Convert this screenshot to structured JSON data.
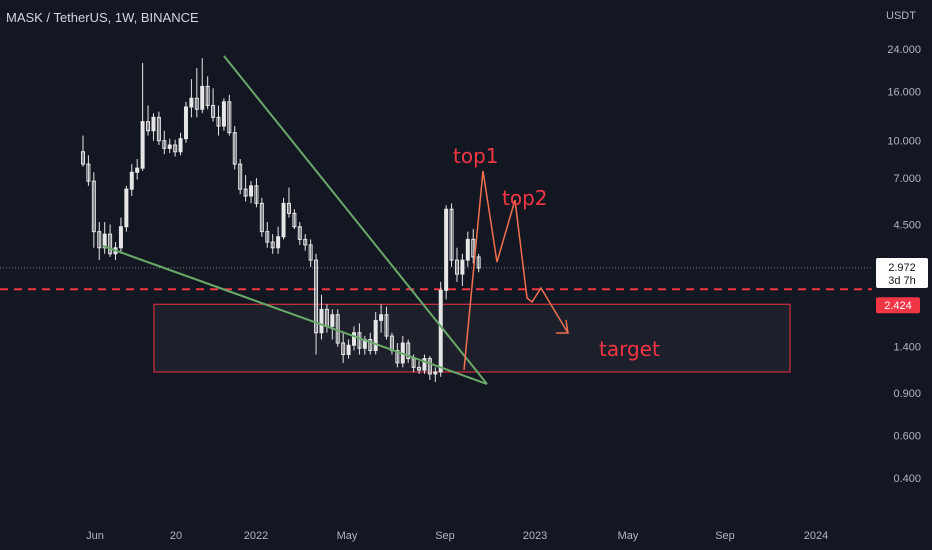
{
  "header": {
    "symbol_title": "MASK / TetherUS, 1W, BINANCE",
    "unit": "USDT"
  },
  "colors": {
    "background": "#131722",
    "axis_text": "#b2b5be",
    "candle_up": "#e6e6e6",
    "candle_down": "#e6e6e6",
    "trendline": "#6aa96a",
    "annotation": "#f23645",
    "arrow": "#f2704f",
    "dashed_level": "#f23645",
    "target_box": "#f23645"
  },
  "chart_data": {
    "type": "candlestick",
    "y_scale": "log",
    "ylim": [
      0.3,
      30
    ],
    "y_ticks": [
      "24.000",
      "16.000",
      "10.000",
      "7.000",
      "4.500",
      "1.400",
      "0.900",
      "0.600",
      "0.400"
    ],
    "y_tick_values": [
      24,
      16,
      10,
      7,
      4.5,
      1.4,
      0.9,
      0.6,
      0.4
    ],
    "x_ticks": [
      "Jun",
      "20",
      "2022",
      "May",
      "Sep",
      "2023",
      "May",
      "Sep",
      "2024"
    ],
    "current_price": {
      "value": "2.972",
      "countdown": "3d 7h"
    },
    "level_price": {
      "value": "2.424"
    },
    "target_zone": {
      "low": 1.1,
      "high": 2.1
    },
    "annotations": [
      "top1",
      "top2",
      "target"
    ],
    "candles": [
      [
        9.0,
        10.5,
        7.8,
        8.0
      ],
      [
        8.0,
        8.7,
        6.5,
        6.8
      ],
      [
        6.8,
        7.4,
        3.6,
        4.2
      ],
      [
        4.2,
        4.6,
        3.2,
        3.6
      ],
      [
        3.6,
        4.6,
        3.4,
        4.1
      ],
      [
        4.1,
        4.5,
        3.3,
        3.4
      ],
      [
        3.4,
        3.8,
        3.2,
        3.6
      ],
      [
        3.6,
        4.8,
        3.4,
        4.4
      ],
      [
        4.4,
        6.5,
        4.2,
        6.3
      ],
      [
        6.3,
        8.0,
        5.9,
        7.4
      ],
      [
        7.4,
        8.4,
        6.9,
        7.7
      ],
      [
        7.7,
        21.0,
        7.5,
        12.0
      ],
      [
        12.0,
        14.0,
        10.5,
        11.0
      ],
      [
        11.0,
        13.0,
        10.0,
        12.5
      ],
      [
        12.5,
        13.2,
        9.6,
        10.0
      ],
      [
        10.0,
        11.0,
        8.8,
        9.3
      ],
      [
        9.3,
        10.2,
        8.9,
        9.6
      ],
      [
        9.6,
        10.1,
        8.6,
        9.0
      ],
      [
        9.0,
        10.8,
        8.7,
        10.2
      ],
      [
        10.2,
        14.5,
        9.8,
        13.8
      ],
      [
        13.8,
        18.0,
        12.5,
        15.0
      ],
      [
        15.0,
        20.0,
        12.5,
        13.5
      ],
      [
        13.5,
        22.0,
        13.0,
        16.8
      ],
      [
        16.8,
        18.5,
        13.5,
        14.0
      ],
      [
        14.0,
        16.5,
        12.0,
        12.5
      ],
      [
        12.5,
        14.0,
        10.5,
        11.5
      ],
      [
        11.5,
        15.0,
        11.0,
        14.5
      ],
      [
        14.5,
        15.5,
        10.5,
        10.8
      ],
      [
        10.8,
        11.5,
        7.6,
        8.0
      ],
      [
        8.0,
        8.4,
        6.0,
        6.3
      ],
      [
        6.3,
        7.2,
        5.6,
        5.9
      ],
      [
        5.9,
        6.8,
        5.5,
        6.5
      ],
      [
        6.5,
        7.0,
        5.3,
        5.5
      ],
      [
        5.5,
        5.8,
        4.0,
        4.2
      ],
      [
        4.2,
        4.6,
        3.6,
        3.8
      ],
      [
        3.8,
        4.1,
        3.4,
        3.6
      ],
      [
        3.6,
        4.4,
        3.4,
        4.0
      ],
      [
        4.0,
        5.8,
        3.9,
        5.5
      ],
      [
        5.5,
        6.4,
        4.8,
        5.0
      ],
      [
        5.0,
        5.2,
        4.3,
        4.4
      ],
      [
        4.4,
        4.6,
        3.7,
        3.9
      ],
      [
        3.9,
        4.1,
        3.5,
        3.7
      ],
      [
        3.7,
        3.9,
        3.0,
        3.2
      ],
      [
        3.2,
        3.4,
        1.3,
        1.6
      ],
      [
        1.6,
        2.3,
        1.5,
        2.0
      ],
      [
        2.0,
        2.1,
        1.6,
        1.7
      ],
      [
        1.7,
        2.0,
        1.5,
        1.9
      ],
      [
        1.9,
        2.0,
        1.4,
        1.45
      ],
      [
        1.45,
        1.6,
        1.2,
        1.3
      ],
      [
        1.3,
        1.5,
        1.25,
        1.42
      ],
      [
        1.42,
        1.7,
        1.35,
        1.6
      ],
      [
        1.6,
        1.75,
        1.3,
        1.38
      ],
      [
        1.38,
        1.55,
        1.3,
        1.5
      ],
      [
        1.5,
        1.6,
        1.3,
        1.35
      ],
      [
        1.35,
        1.95,
        1.3,
        1.8
      ],
      [
        1.8,
        2.1,
        1.6,
        1.9
      ],
      [
        1.9,
        2.05,
        1.5,
        1.55
      ],
      [
        1.55,
        1.6,
        1.3,
        1.35
      ],
      [
        1.35,
        1.45,
        1.15,
        1.2
      ],
      [
        1.2,
        1.55,
        1.15,
        1.45
      ],
      [
        1.45,
        1.5,
        1.2,
        1.25
      ],
      [
        1.25,
        1.3,
        1.1,
        1.15
      ],
      [
        1.15,
        1.22,
        1.08,
        1.12
      ],
      [
        1.12,
        1.3,
        1.08,
        1.25
      ],
      [
        1.25,
        1.28,
        1.02,
        1.08
      ],
      [
        1.08,
        1.15,
        1.0,
        1.1
      ],
      [
        1.1,
        2.6,
        1.05,
        2.4
      ],
      [
        2.4,
        5.4,
        2.2,
        5.2
      ],
      [
        5.2,
        5.5,
        3.0,
        3.2
      ],
      [
        3.2,
        3.6,
        2.6,
        2.8
      ],
      [
        2.8,
        3.4,
        2.5,
        3.2
      ],
      [
        3.2,
        4.2,
        3.0,
        3.9
      ],
      [
        3.9,
        4.3,
        3.1,
        3.3
      ],
      [
        3.3,
        3.4,
        2.85,
        2.97
      ]
    ]
  }
}
